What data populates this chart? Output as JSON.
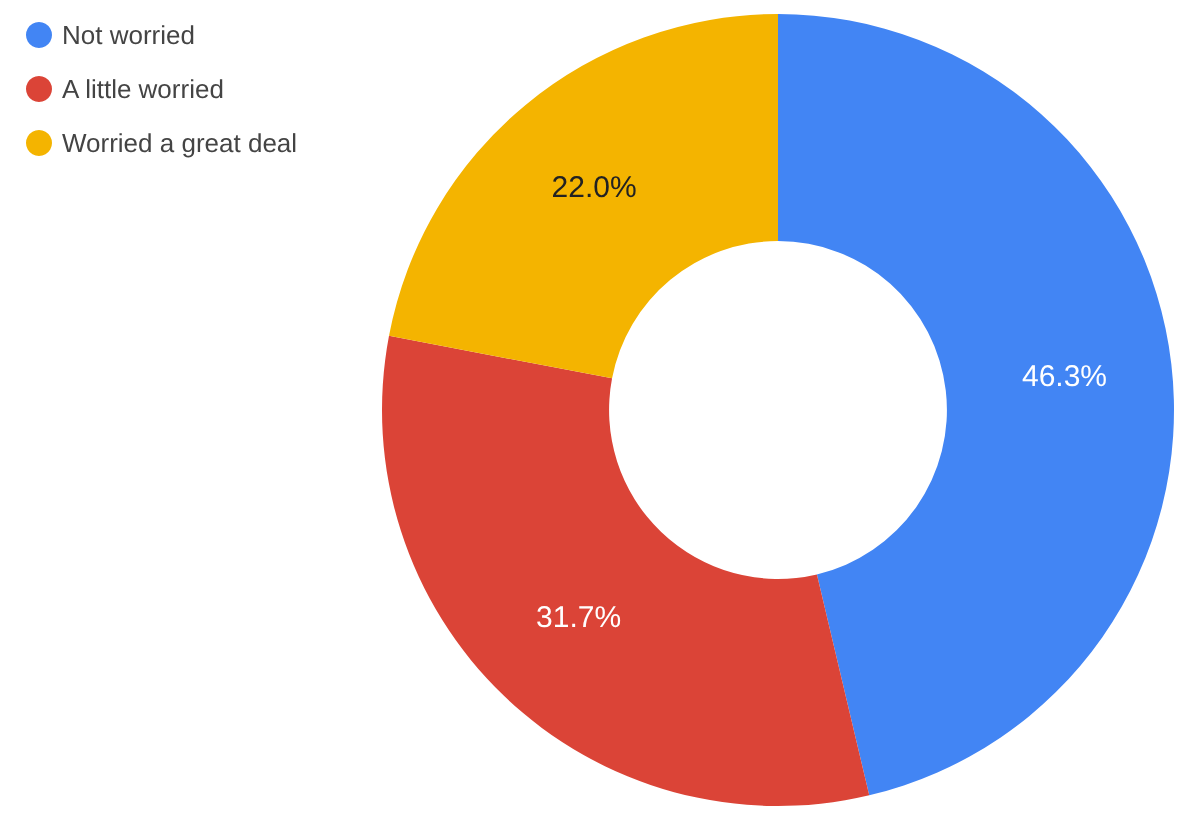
{
  "chart_data": {
    "type": "donut",
    "categories": [
      "Not worried",
      "A little worried",
      "Worried a great deal"
    ],
    "values": [
      46.3,
      31.7,
      22.0
    ],
    "colors": [
      "#4285f4",
      "#db4437",
      "#f4b400"
    ],
    "value_labels": [
      "46.3%",
      "31.7%",
      "22.0%"
    ],
    "legend": "top left"
  }
}
